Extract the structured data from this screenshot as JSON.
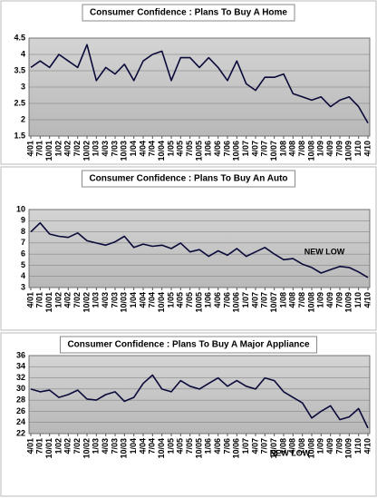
{
  "chart_data": [
    {
      "type": "line",
      "title": "Consumer Confidence : Plans To Buy A Home",
      "categories": [
        "4/01",
        "7/01",
        "10/01",
        "1/02",
        "4/02",
        "7/02",
        "10/02",
        "1/03",
        "4/03",
        "7/03",
        "10/03",
        "1/04",
        "4/04",
        "7/04",
        "10/04",
        "1/05",
        "4/05",
        "7/05",
        "10/05",
        "1/06",
        "4/06",
        "7/06",
        "10/06",
        "1/07",
        "4/07",
        "7/07",
        "10/07",
        "1/08",
        "4/08",
        "7/08",
        "10/08",
        "1/09",
        "4/09",
        "7/09",
        "10/09",
        "1/10",
        "4/10"
      ],
      "values": [
        3.6,
        3.8,
        3.6,
        4.0,
        3.8,
        3.6,
        4.3,
        3.2,
        3.6,
        3.4,
        3.7,
        3.2,
        3.8,
        4.0,
        4.1,
        3.2,
        3.9,
        3.9,
        3.6,
        3.9,
        3.6,
        3.2,
        3.8,
        3.1,
        2.9,
        3.3,
        3.3,
        3.4,
        2.8,
        2.7,
        2.6,
        2.7,
        2.4,
        2.6,
        2.7,
        2.4,
        1.9
      ],
      "color": "#0a0a3a",
      "ylim": [
        1.5,
        4.5
      ],
      "yticks": [
        1.5,
        2,
        2.5,
        3,
        3.5,
        4,
        4.5
      ],
      "grid": true
    },
    {
      "type": "line",
      "title": "Consumer Confidence : Plans To Buy An Auto",
      "categories": [
        "4/01",
        "7/01",
        "10/01",
        "1/02",
        "4/02",
        "7/02",
        "10/02",
        "1/03",
        "4/03",
        "7/03",
        "10/03",
        "1/04",
        "4/04",
        "7/04",
        "10/04",
        "1/05",
        "4/05",
        "7/05",
        "10/05",
        "1/06",
        "4/06",
        "7/06",
        "10/06",
        "1/07",
        "4/07",
        "7/07",
        "10/07",
        "1/08",
        "4/08",
        "7/08",
        "10/08",
        "1/09",
        "4/09",
        "7/09",
        "10/09",
        "1/10",
        "4/10"
      ],
      "values": [
        8.0,
        8.8,
        7.8,
        7.6,
        7.5,
        7.9,
        7.2,
        7.0,
        6.8,
        7.1,
        7.6,
        6.6,
        6.9,
        6.7,
        6.8,
        6.5,
        7.0,
        6.2,
        6.4,
        5.8,
        6.3,
        5.9,
        6.5,
        5.8,
        6.2,
        6.6,
        6.0,
        5.5,
        5.6,
        5.1,
        4.8,
        4.3,
        4.6,
        4.9,
        4.8,
        4.4,
        3.9
      ],
      "color": "#0a0a3a",
      "ylim": [
        3,
        10
      ],
      "yticks": [
        3,
        4,
        5,
        6,
        7,
        8,
        9,
        10
      ],
      "grid": true,
      "annotation": "NEW LOW"
    },
    {
      "type": "line",
      "title": "Consumer Confidence : Plans To Buy A Major Appliance",
      "categories": [
        "4/01",
        "7/01",
        "10/01",
        "1/02",
        "4/02",
        "7/02",
        "10/02",
        "1/03",
        "4/03",
        "7/03",
        "10/03",
        "1/04",
        "4/04",
        "7/04",
        "10/04",
        "1/05",
        "4/05",
        "7/05",
        "10/05",
        "1/06",
        "4/06",
        "7/06",
        "10/06",
        "1/07",
        "4/07",
        "7/07",
        "10/07",
        "1/08",
        "4/08",
        "7/08",
        "10/08",
        "1/09",
        "4/09",
        "7/09",
        "10/09",
        "1/10",
        "4/10"
      ],
      "values": [
        30.0,
        29.5,
        29.8,
        28.5,
        29.0,
        29.8,
        28.2,
        28.0,
        29.0,
        29.5,
        27.8,
        28.5,
        31.0,
        32.5,
        30.0,
        29.5,
        31.5,
        30.5,
        30.0,
        31.0,
        32.0,
        30.5,
        31.5,
        30.5,
        30.0,
        32.0,
        31.5,
        29.5,
        28.5,
        27.5,
        24.8,
        26.0,
        27.0,
        24.5,
        25.0,
        26.5,
        23.0
      ],
      "color": "#0a0a3a",
      "ylim": [
        22,
        36
      ],
      "yticks": [
        22,
        24,
        26,
        28,
        30,
        32,
        34,
        36
      ],
      "grid": true,
      "annotation": "NEW LOW"
    }
  ]
}
